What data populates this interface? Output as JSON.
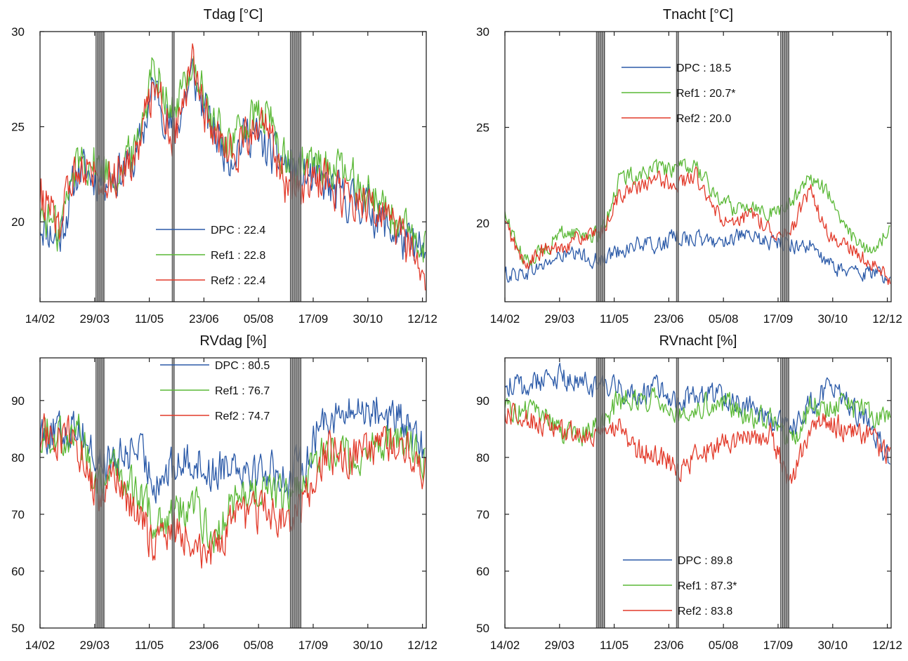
{
  "chart_data": [
    {
      "type": "line",
      "title": "Tdag [°C]",
      "x_ticks": [
        "14/02",
        "29/03",
        "11/05",
        "23/06",
        "05/08",
        "17/09",
        "30/10",
        "12/12"
      ],
      "y_ticks": [
        "20",
        "25",
        "30"
      ],
      "ylim": [
        15.8,
        30
      ],
      "legend_placement": "bottom-center",
      "shaded_periods": [
        [
          89,
          96
        ],
        [
          149,
          151
        ],
        [
          242,
          251
        ]
      ],
      "series": [
        {
          "name": "DPC",
          "label": "DPC : 22.4",
          "color": "#2b5aa8",
          "x": [
            45,
            60,
            75,
            90,
            105,
            120,
            135,
            150,
            165,
            180,
            195,
            210,
            225,
            240,
            255,
            270,
            285,
            300,
            315,
            330,
            347
          ],
          "y": [
            20.0,
            19.0,
            22.8,
            22.3,
            22.5,
            23.2,
            27.2,
            24.5,
            27.8,
            24.8,
            23.5,
            24.8,
            23.6,
            23.0,
            22.3,
            21.9,
            21.2,
            21.0,
            20.0,
            19.0,
            18.3
          ]
        },
        {
          "name": "Ref1",
          "label": "Ref1 : 22.8",
          "color": "#5ab836",
          "x": [
            45,
            60,
            75,
            90,
            105,
            120,
            135,
            150,
            165,
            180,
            195,
            210,
            225,
            240,
            255,
            270,
            285,
            300,
            315,
            330,
            347
          ],
          "y": [
            20.5,
            19.5,
            23.5,
            23.0,
            22.5,
            23.8,
            28.5,
            25.5,
            28.5,
            25.2,
            24.2,
            25.3,
            25.5,
            22.8,
            23.0,
            23.0,
            22.5,
            21.8,
            21.0,
            19.5,
            18.5
          ]
        },
        {
          "name": "Ref2",
          "label": "Ref2 : 22.4",
          "color": "#e23a2a",
          "x": [
            45,
            60,
            75,
            90,
            105,
            120,
            135,
            150,
            165,
            180,
            195,
            210,
            225,
            240,
            255,
            270,
            285,
            300,
            315,
            330,
            347
          ],
          "y": [
            21.5,
            19.8,
            23.3,
            22.5,
            22.5,
            23.5,
            27.5,
            24.5,
            28.2,
            24.5,
            23.8,
            24.5,
            24.8,
            21.5,
            22.0,
            22.2,
            21.3,
            21.2,
            20.3,
            19.0,
            17.0
          ]
        }
      ]
    },
    {
      "type": "line",
      "title": "Tnacht [°C]",
      "x_ticks": [
        "14/02",
        "29/03",
        "11/05",
        "23/06",
        "05/08",
        "17/09",
        "30/10",
        "12/12"
      ],
      "y_ticks": [
        "20",
        "25",
        "30"
      ],
      "ylim": [
        15.9,
        30
      ],
      "legend_placement": "top-left",
      "shaded_periods": [
        [
          117,
          124
        ],
        [
          180,
          182
        ],
        [
          262,
          269
        ]
      ],
      "series": [
        {
          "name": "DPC",
          "label": "DPC : 18.5",
          "color": "#2b5aa8",
          "x": [
            45,
            60,
            75,
            90,
            105,
            120,
            135,
            150,
            165,
            180,
            195,
            210,
            225,
            240,
            255,
            270,
            285,
            300,
            315,
            330,
            347
          ],
          "y": [
            17.3,
            17.4,
            17.8,
            18.3,
            18.3,
            18.0,
            18.6,
            18.9,
            18.8,
            19.3,
            19.2,
            19.0,
            19.3,
            19.2,
            19.0,
            18.9,
            18.8,
            17.8,
            17.5,
            17.4,
            17.3
          ]
        },
        {
          "name": "Ref1",
          "label": "Ref1 : 20.7*",
          "color": "#5ab836",
          "x": [
            45,
            60,
            75,
            90,
            105,
            120,
            135,
            150,
            165,
            180,
            195,
            210,
            225,
            240,
            255,
            270,
            285,
            300,
            315,
            330,
            347
          ],
          "y": [
            20.5,
            18.0,
            18.6,
            19.5,
            19.5,
            19.3,
            22.3,
            22.6,
            22.8,
            22.8,
            23.0,
            21.5,
            20.8,
            21.0,
            20.5,
            21.0,
            22.5,
            21.5,
            19.5,
            18.5,
            19.5
          ]
        },
        {
          "name": "Ref2",
          "label": "Ref2 : 20.0",
          "color": "#e23a2a",
          "x": [
            45,
            60,
            75,
            90,
            105,
            120,
            135,
            150,
            165,
            180,
            195,
            210,
            225,
            240,
            255,
            270,
            285,
            300,
            315,
            330,
            347
          ],
          "y": [
            20.0,
            17.8,
            18.5,
            18.8,
            19.3,
            19.3,
            21.5,
            21.8,
            22.3,
            22.0,
            22.5,
            20.6,
            19.8,
            20.5,
            19.6,
            19.5,
            21.8,
            19.2,
            18.8,
            18.0,
            17.2
          ]
        }
      ]
    },
    {
      "type": "line",
      "title": "RVdag [%]",
      "x_ticks": [
        "14/02",
        "29/03",
        "11/05",
        "23/06",
        "05/08",
        "17/09",
        "30/10",
        "12/12"
      ],
      "y_ticks": [
        "50",
        "60",
        "70",
        "80",
        "90"
      ],
      "ylim": [
        50,
        97.5
      ],
      "legend_placement": "top-center",
      "shaded_periods": [
        [
          89,
          96
        ],
        [
          149,
          151
        ],
        [
          242,
          251
        ]
      ],
      "series": [
        {
          "name": "DPC",
          "label": "DPC : 80.5",
          "color": "#2b5aa8",
          "x": [
            45,
            60,
            75,
            90,
            105,
            120,
            135,
            150,
            165,
            180,
            195,
            210,
            225,
            240,
            255,
            270,
            285,
            300,
            315,
            330,
            347
          ],
          "y": [
            85.0,
            84.0,
            86.0,
            79.0,
            79.0,
            82.0,
            76.0,
            78.0,
            80.0,
            77.0,
            80.0,
            78.0,
            78.0,
            76.0,
            80.0,
            88.0,
            87.0,
            89.0,
            88.0,
            86.0,
            81.0
          ]
        },
        {
          "name": "Ref1",
          "label": "Ref1 : 76.7",
          "color": "#5ab836",
          "x": [
            45,
            60,
            75,
            90,
            105,
            120,
            135,
            150,
            165,
            180,
            195,
            210,
            225,
            240,
            255,
            270,
            285,
            300,
            315,
            330,
            347
          ],
          "y": [
            85.0,
            84.0,
            84.0,
            76.0,
            78.0,
            74.0,
            69.0,
            70.0,
            72.0,
            66.0,
            71.0,
            74.0,
            74.0,
            72.0,
            76.0,
            82.0,
            80.0,
            81.0,
            82.0,
            84.0,
            80.0
          ]
        },
        {
          "name": "Ref2",
          "label": "Ref2 : 74.7",
          "color": "#e23a2a",
          "x": [
            45,
            60,
            75,
            90,
            105,
            120,
            135,
            150,
            165,
            180,
            195,
            210,
            225,
            240,
            255,
            270,
            285,
            300,
            315,
            330,
            347
          ],
          "y": [
            84.0,
            84.0,
            82.0,
            73.0,
            76.0,
            70.0,
            65.0,
            67.0,
            66.0,
            62.0,
            68.0,
            70.0,
            71.0,
            68.0,
            73.0,
            81.0,
            80.0,
            80.0,
            82.0,
            83.0,
            77.0
          ]
        }
      ]
    },
    {
      "type": "line",
      "title": "RVnacht [%]",
      "x_ticks": [
        "14/02",
        "29/03",
        "11/05",
        "23/06",
        "05/08",
        "17/09",
        "30/10",
        "12/12"
      ],
      "y_ticks": [
        "50",
        "60",
        "70",
        "80",
        "90"
      ],
      "ylim": [
        50,
        97.5
      ],
      "legend_placement": "bottom-center",
      "shaded_periods": [
        [
          117,
          124
        ],
        [
          180,
          182
        ],
        [
          262,
          269
        ]
      ],
      "series": [
        {
          "name": "DPC",
          "label": "DPC : 89.8",
          "color": "#2b5aa8",
          "x": [
            45,
            60,
            75,
            90,
            105,
            120,
            135,
            150,
            165,
            180,
            195,
            210,
            225,
            240,
            255,
            270,
            285,
            300,
            315,
            330,
            347
          ],
          "y": [
            93.0,
            92.0,
            94.0,
            94.0,
            93.0,
            92.0,
            92.0,
            91.0,
            92.0,
            90.0,
            91.0,
            91.0,
            90.0,
            89.0,
            86.0,
            85.0,
            89.0,
            92.0,
            90.0,
            86.0,
            80.0
          ]
        },
        {
          "name": "Ref1",
          "label": "Ref1 : 87.3*",
          "color": "#5ab836",
          "x": [
            45,
            60,
            75,
            90,
            105,
            120,
            135,
            150,
            165,
            180,
            195,
            210,
            225,
            240,
            255,
            270,
            285,
            300,
            315,
            330,
            347
          ],
          "y": [
            89.0,
            88.0,
            88.0,
            84.0,
            84.0,
            86.0,
            90.0,
            90.0,
            91.0,
            88.0,
            89.0,
            90.0,
            89.0,
            87.0,
            88.0,
            82.0,
            89.0,
            89.0,
            89.0,
            88.0,
            86.0
          ]
        },
        {
          "name": "Ref2",
          "label": "Ref2 : 83.8",
          "color": "#e23a2a",
          "x": [
            45,
            60,
            75,
            90,
            105,
            120,
            135,
            150,
            165,
            180,
            195,
            210,
            225,
            240,
            255,
            270,
            285,
            300,
            315,
            330,
            347
          ],
          "y": [
            88.0,
            87.0,
            86.0,
            84.0,
            84.0,
            83.0,
            86.0,
            81.0,
            81.0,
            78.0,
            80.0,
            82.0,
            83.0,
            83.0,
            84.0,
            75.0,
            85.0,
            86.0,
            85.0,
            84.0,
            80.0
          ]
        }
      ]
    }
  ]
}
